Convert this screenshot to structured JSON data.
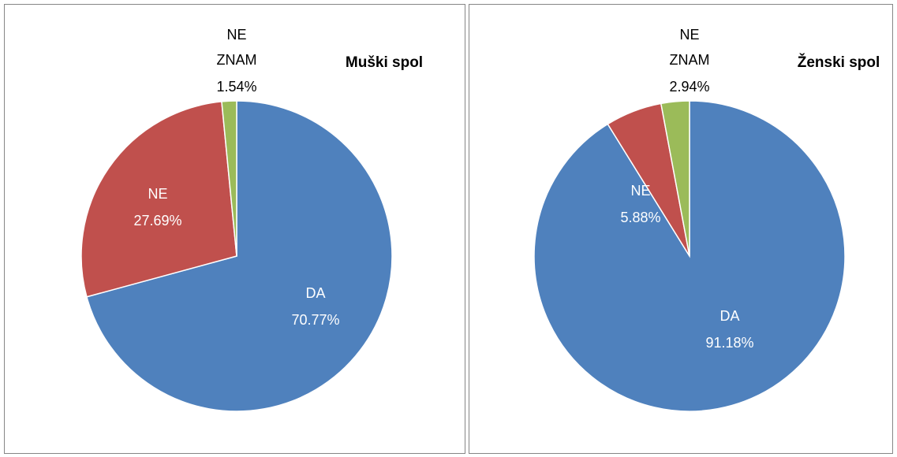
{
  "chart_data": [
    {
      "type": "pie",
      "title": "Muški spol",
      "categories": [
        "DA",
        "NE",
        "NE ZNAM"
      ],
      "values": [
        70.77,
        27.69,
        1.54
      ],
      "value_labels": [
        "70.77%",
        "27.69%",
        "1.54%"
      ],
      "colors": [
        "#4f81bd",
        "#c0504d",
        "#9bbb59"
      ]
    },
    {
      "type": "pie",
      "title": "Ženski spol",
      "categories": [
        "DA",
        "NE",
        "NE ZNAM"
      ],
      "values": [
        91.18,
        5.88,
        2.94
      ],
      "value_labels": [
        "91.18%",
        "5.88%",
        "2.94%"
      ],
      "colors": [
        "#4f81bd",
        "#c0504d",
        "#9bbb59"
      ]
    }
  ]
}
